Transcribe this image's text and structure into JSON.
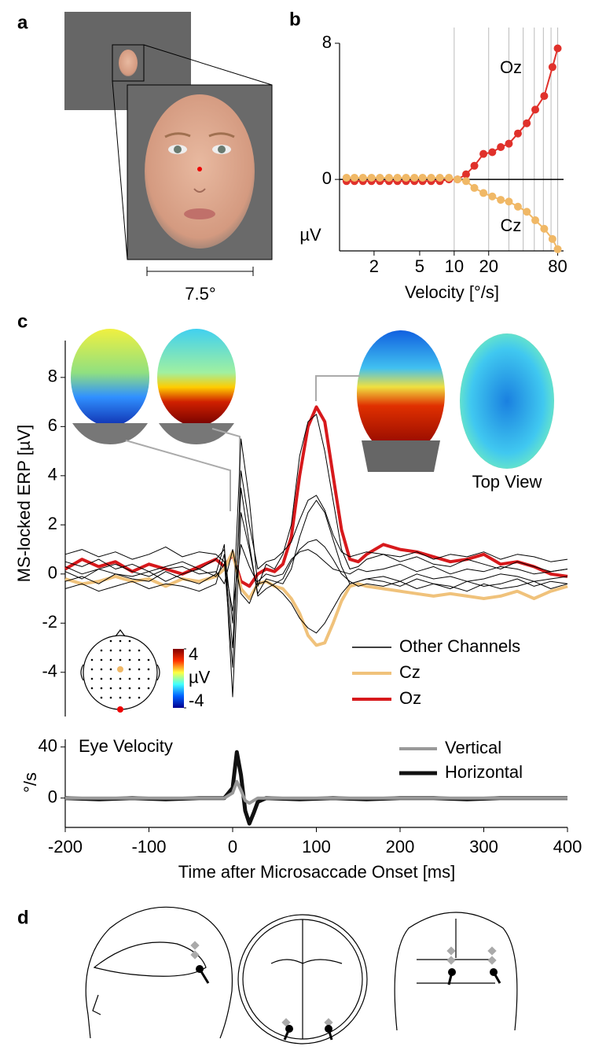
{
  "panel_labels": [
    "a",
    "b",
    "c",
    "d"
  ],
  "stimulus": {
    "scale_label": "7.5°"
  },
  "topographies": {
    "view_label": "Top View"
  },
  "chart_data": [
    {
      "type": "line",
      "xlog": true,
      "markers": true,
      "zero_line": true,
      "xlabel": "Velocity [°/s]",
      "ylabel": "µV",
      "x": [
        1.15,
        1.35,
        1.6,
        1.9,
        2.25,
        2.7,
        3.2,
        3.8,
        4.5,
        5.3,
        6.3,
        7.5,
        9,
        10.7,
        12.7,
        15,
        18,
        21.5,
        25.5,
        30,
        36,
        43,
        51,
        61,
        72,
        80
      ],
      "xlim": [
        1,
        90
      ],
      "ylim": [
        -4.2,
        8
      ],
      "xticks": [
        2,
        5,
        10,
        20,
        80
      ],
      "yticks": [
        0,
        8
      ],
      "xgrid": [
        10,
        20,
        30,
        40,
        50,
        60,
        70,
        80
      ],
      "series": [
        {
          "name": "Oz",
          "color": "#e0312b",
          "values": [
            -0.1,
            -0.1,
            -0.1,
            -0.1,
            -0.1,
            -0.1,
            -0.1,
            -0.1,
            -0.1,
            -0.1,
            -0.1,
            -0.1,
            0,
            0,
            0.3,
            0.8,
            1.5,
            1.6,
            1.9,
            2.1,
            2.7,
            3.3,
            4.1,
            4.9,
            6.6,
            7.7
          ]
        },
        {
          "name": "Cz",
          "color": "#f0b866",
          "values": [
            0.1,
            0.1,
            0.1,
            0.1,
            0.1,
            0.1,
            0.1,
            0.1,
            0.1,
            0.1,
            0.1,
            0.1,
            0.1,
            0,
            -0.1,
            -0.5,
            -0.8,
            -1,
            -1.2,
            -1.3,
            -1.6,
            -1.9,
            -2.4,
            -2.9,
            -3.5,
            -4.1
          ]
        }
      ]
    },
    {
      "type": "line",
      "ylabel": "MS-locked ERP [µV]",
      "x": [
        -200,
        -180,
        -160,
        -140,
        -120,
        -100,
        -80,
        -60,
        -40,
        -20,
        -10,
        0,
        10,
        20,
        30,
        40,
        50,
        60,
        70,
        80,
        90,
        100,
        110,
        120,
        130,
        140,
        150,
        160,
        180,
        200,
        220,
        240,
        260,
        280,
        300,
        320,
        340,
        360,
        380,
        400
      ],
      "xlim": [
        -200,
        400
      ],
      "ylim": [
        -5.8,
        9.5
      ],
      "yticks": [
        -4,
        -2,
        0,
        2,
        4,
        6,
        8
      ],
      "colorbar": {
        "label": "µV",
        "lim": [
          -4,
          4
        ],
        "ticks": [
          -4,
          4
        ]
      },
      "series": [
        {
          "name": "Other Channels",
          "color": "#000000",
          "values": [
            [
              0.5,
              0.3,
              0.6,
              0.2,
              0.4,
              0.1,
              0.3,
              0.5,
              0.2,
              0.6,
              1.0,
              -2.0,
              5.5,
              3.0,
              -0.5,
              0.4,
              0.2,
              0.8,
              2.0,
              4.8,
              6.2,
              6.5,
              5.0,
              3.0,
              1.0,
              0.2,
              0.3,
              0.6,
              0.8,
              0.5,
              0.7,
              0.4,
              0.3,
              0.6,
              0.4,
              0.2,
              0.5,
              0.3,
              0.1,
              0.2
            ],
            [
              -0.3,
              -0.1,
              -0.4,
              0.0,
              -0.2,
              -0.3,
              0.1,
              -0.2,
              -0.4,
              0.0,
              1.2,
              -5.0,
              2.5,
              1.0,
              -0.8,
              -0.2,
              -0.3,
              -0.4,
              0.2,
              1.5,
              2.5,
              3.0,
              2.5,
              1.4,
              0.3,
              -0.4,
              -0.3,
              -0.2,
              -0.3,
              -0.5,
              -0.2,
              -0.4,
              -0.6,
              -0.3,
              -0.5,
              -0.4,
              -0.2,
              -0.5,
              -0.3,
              -0.4
            ],
            [
              0.8,
              1.0,
              0.7,
              0.9,
              0.6,
              0.8,
              1.1,
              0.7,
              0.9,
              0.8,
              0.5,
              -3.8,
              4.2,
              2.0,
              0.2,
              0.5,
              0.6,
              0.9,
              1.3,
              2.2,
              3.0,
              3.2,
              2.6,
              1.6,
              0.9,
              0.7,
              0.8,
              0.9,
              0.8,
              0.7,
              0.9,
              0.6,
              0.8,
              0.7,
              0.9,
              0.6,
              0.8,
              0.7,
              0.5,
              0.6
            ],
            [
              0.1,
              -0.2,
              0.2,
              0.0,
              -0.1,
              0.1,
              -0.3,
              0.0,
              0.2,
              -0.1,
              0.4,
              -1.5,
              1.2,
              0.3,
              -0.4,
              -0.3,
              -0.5,
              -0.8,
              -1.2,
              -1.8,
              -2.2,
              -2.4,
              -2.0,
              -1.4,
              -0.8,
              -0.4,
              -0.3,
              -0.2,
              -0.1,
              -0.3,
              0.0,
              -0.2,
              -0.1,
              -0.3,
              -0.2,
              0.0,
              -0.1,
              -0.3,
              -0.2,
              -0.1
            ],
            [
              -0.6,
              -0.4,
              -0.7,
              -0.5,
              -0.3,
              -0.6,
              -0.4,
              -0.5,
              -0.7,
              -0.4,
              0.8,
              -3.0,
              3.5,
              1.2,
              -0.9,
              -0.6,
              -0.4,
              -0.2,
              0.5,
              1.0,
              1.3,
              1.4,
              1.1,
              0.6,
              0.0,
              -0.3,
              -0.5,
              -0.4,
              -0.5,
              -0.3,
              -0.6,
              -0.4,
              -0.5,
              -0.7,
              -0.4,
              -0.6,
              -0.5,
              -0.3,
              -0.6,
              -0.4
            ],
            [
              0.3,
              0.0,
              0.2,
              0.4,
              0.1,
              -0.1,
              0.2,
              0.3,
              0.0,
              0.1,
              -0.4,
              1.0,
              -0.8,
              -1.2,
              -0.3,
              0.0,
              -0.1,
              0.0,
              0.6,
              0.9,
              1.0,
              0.8,
              0.5,
              0.2,
              0.1,
              0.0,
              0.2,
              0.1,
              0.2,
              0.4,
              0.1,
              0.3,
              0.0,
              0.2,
              0.1,
              0.3,
              0.2,
              0.0,
              0.1,
              0.2
            ]
          ]
        },
        {
          "name": "Oz",
          "color": "#d7191c",
          "values": [
            0.2,
            0.6,
            0.3,
            0.5,
            0.1,
            0.4,
            0.2,
            0.0,
            0.3,
            0.6,
            0.3,
            0.8,
            -0.3,
            -0.5,
            0.0,
            0.2,
            0.1,
            0.4,
            1.5,
            4.0,
            6.0,
            6.8,
            6.2,
            4.0,
            1.8,
            0.6,
            0.5,
            0.8,
            1.2,
            1.0,
            0.9,
            0.7,
            0.5,
            0.6,
            0.8,
            0.4,
            0.5,
            0.3,
            0.0,
            -0.1
          ]
        },
        {
          "name": "Cz",
          "color": "#f0c27b",
          "values": [
            -0.2,
            -0.4,
            -0.3,
            -0.1,
            -0.3,
            -0.2,
            -0.5,
            -0.2,
            -0.3,
            -0.1,
            0.2,
            0.9,
            -0.6,
            -1.0,
            -0.4,
            -0.3,
            -0.5,
            -0.6,
            -1.0,
            -1.6,
            -2.5,
            -2.9,
            -2.8,
            -2.0,
            -1.1,
            -0.5,
            -0.4,
            -0.5,
            -0.6,
            -0.7,
            -0.8,
            -0.9,
            -0.8,
            -0.9,
            -1.0,
            -0.9,
            -0.7,
            -1.0,
            -0.7,
            -0.5
          ]
        }
      ]
    },
    {
      "type": "line",
      "title": "Eye Velocity",
      "ylabel": "°/s",
      "xlabel": "Time after Microsaccade Onset [ms]",
      "x": [
        -200,
        -160,
        -120,
        -80,
        -40,
        -10,
        0,
        5,
        10,
        15,
        20,
        25,
        30,
        40,
        80,
        120,
        160,
        200,
        240,
        280,
        320,
        360,
        400
      ],
      "xlim": [
        -200,
        400
      ],
      "ylim": [
        -23,
        46
      ],
      "xticks": [
        -200,
        -100,
        0,
        100,
        200,
        300,
        400
      ],
      "yticks": [
        0,
        40
      ],
      "series": [
        {
          "name": "Horizontal",
          "color": "#111111",
          "values": [
            0,
            -1,
            0,
            -1,
            0,
            0,
            8,
            36,
            18,
            -10,
            -20,
            -12,
            -3,
            0,
            -1,
            0,
            -1,
            0,
            0,
            -1,
            0,
            0,
            0
          ]
        },
        {
          "name": "Vertical",
          "color": "#999999",
          "values": [
            0,
            0,
            0,
            0,
            0,
            0,
            4,
            13,
            6,
            -2,
            -4,
            -2,
            0,
            0,
            0,
            0,
            0,
            0,
            0,
            0,
            0,
            0,
            0
          ]
        }
      ]
    }
  ]
}
